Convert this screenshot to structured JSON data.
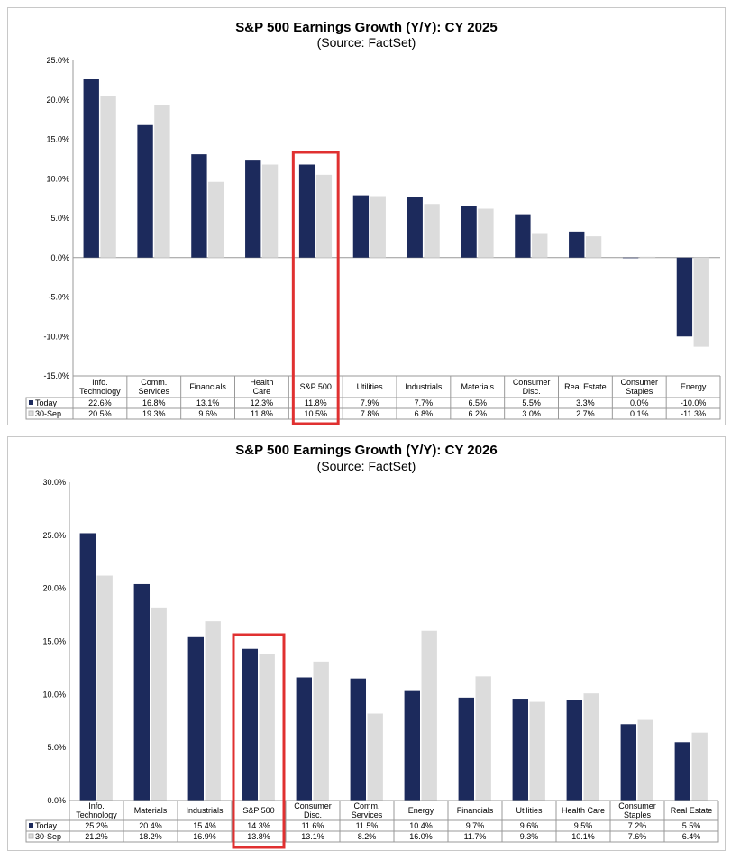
{
  "chart_data": [
    {
      "type": "bar",
      "title": "S&P 500 Earnings Growth (Y/Y): CY 2025",
      "subtitle": "(Source: FactSet)",
      "categories": [
        [
          "Info.",
          "Technology"
        ],
        [
          "Comm.",
          "Services"
        ],
        [
          "Financials"
        ],
        [
          "Health",
          "Care"
        ],
        [
          "S&P 500"
        ],
        [
          "Utilities"
        ],
        [
          "Industrials"
        ],
        [
          "Materials"
        ],
        [
          "Consumer",
          "Disc."
        ],
        [
          "Real Estate"
        ],
        [
          "Consumer",
          "Staples"
        ],
        [
          "Energy"
        ]
      ],
      "series": [
        {
          "name": "Today",
          "color": "#1c2a5c",
          "values": [
            22.6,
            16.8,
            13.1,
            12.3,
            11.8,
            7.9,
            7.7,
            6.5,
            5.5,
            3.3,
            0.0,
            -10.0
          ],
          "labels": [
            "22.6%",
            "16.8%",
            "13.1%",
            "12.3%",
            "11.8%",
            "7.9%",
            "7.7%",
            "6.5%",
            "5.5%",
            "3.3%",
            "0.0%",
            "-10.0%"
          ]
        },
        {
          "name": "30-Sep",
          "color": "#dcdcdc",
          "values": [
            20.5,
            19.3,
            9.6,
            11.8,
            10.5,
            7.8,
            6.8,
            6.2,
            3.0,
            2.7,
            0.1,
            -11.3
          ],
          "labels": [
            "20.5%",
            "19.3%",
            "9.6%",
            "11.8%",
            "10.5%",
            "7.8%",
            "6.8%",
            "6.2%",
            "3.0%",
            "2.7%",
            "0.1%",
            "-11.3%"
          ]
        }
      ],
      "ylim": [
        -15,
        25
      ],
      "yticks": [
        25,
        20,
        15,
        10,
        5,
        0,
        -5,
        -10,
        -15
      ],
      "ytick_labels": [
        "25.0%",
        "20.0%",
        "15.0%",
        "10.0%",
        "5.0%",
        "0.0%",
        "-5.0%",
        "-10.0%",
        "-15.0%"
      ],
      "highlight_index": 4,
      "highlight_color": "#e03030"
    },
    {
      "type": "bar",
      "title": "S&P 500 Earnings Growth (Y/Y): CY 2026",
      "subtitle": "(Source: FactSet)",
      "categories": [
        [
          "Info.",
          "Technology"
        ],
        [
          "Materials"
        ],
        [
          "Industrials"
        ],
        [
          "S&P 500"
        ],
        [
          "Consumer",
          "Disc."
        ],
        [
          "Comm.",
          "Services"
        ],
        [
          "Energy"
        ],
        [
          "Financials"
        ],
        [
          "Utilities"
        ],
        [
          "Health Care"
        ],
        [
          "Consumer",
          "Staples"
        ],
        [
          "Real Estate"
        ]
      ],
      "series": [
        {
          "name": "Today",
          "color": "#1c2a5c",
          "values": [
            25.2,
            20.4,
            15.4,
            14.3,
            11.6,
            11.5,
            10.4,
            9.7,
            9.6,
            9.5,
            7.2,
            5.5
          ],
          "labels": [
            "25.2%",
            "20.4%",
            "15.4%",
            "14.3%",
            "11.6%",
            "11.5%",
            "10.4%",
            "9.7%",
            "9.6%",
            "9.5%",
            "7.2%",
            "5.5%"
          ]
        },
        {
          "name": "30-Sep",
          "color": "#dcdcdc",
          "values": [
            21.2,
            18.2,
            16.9,
            13.8,
            13.1,
            8.2,
            16.0,
            11.7,
            9.3,
            10.1,
            7.6,
            6.4
          ],
          "labels": [
            "21.2%",
            "18.2%",
            "16.9%",
            "13.8%",
            "13.1%",
            "8.2%",
            "16.0%",
            "11.7%",
            "9.3%",
            "10.1%",
            "7.6%",
            "6.4%"
          ]
        }
      ],
      "ylim": [
        0,
        30
      ],
      "yticks": [
        30,
        25,
        20,
        15,
        10,
        5,
        0
      ],
      "ytick_labels": [
        "30.0%",
        "25.0%",
        "20.0%",
        "15.0%",
        "10.0%",
        "5.0%",
        "0.0%"
      ],
      "highlight_index": 3,
      "highlight_color": "#e03030"
    }
  ]
}
